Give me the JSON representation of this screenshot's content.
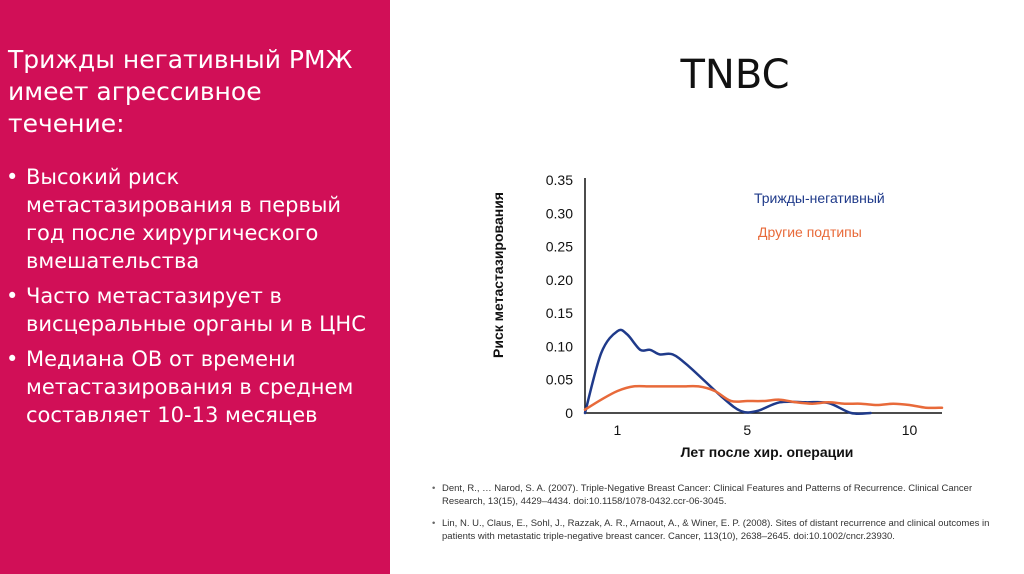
{
  "left": {
    "title": "Трижды негативный РМЖ имеет агрессивное течение:",
    "bullets": [
      "Высокий риск метастазирования в первый год после хирургического вмешательства",
      "Часто метастазирует в висцеральные органы и в ЦНС",
      "Медиана ОВ от времени метастазирования в среднем составляет 10-13 месяцев"
    ],
    "bullet_char": "•",
    "background": "#d10f57"
  },
  "right": {
    "title": "TNBC"
  },
  "chart_data": {
    "type": "line",
    "xlabel": "Лет после хир. операции",
    "ylabel": "Риск метастазирования",
    "y_ticks": [
      "0",
      "0.05",
      "0.10",
      "0.15",
      "0.20",
      "0.25",
      "0.30",
      "0.35"
    ],
    "x_ticks": [
      "1",
      "5",
      "10"
    ],
    "xlim": [
      0,
      11
    ],
    "ylim": [
      0,
      0.35
    ],
    "legend_position": "top-right",
    "series": [
      {
        "name": "Трижды-негативный",
        "color": "#1f3a8a",
        "x": [
          0,
          0.5,
          1.0,
          1.3,
          1.7,
          2.0,
          2.3,
          2.7,
          3.2,
          4.2,
          4.8,
          5.3,
          6.0,
          6.8,
          7.5,
          8.2,
          8.8
        ],
        "y": [
          0.0,
          0.09,
          0.123,
          0.118,
          0.095,
          0.095,
          0.088,
          0.088,
          0.07,
          0.025,
          0.003,
          0.003,
          0.016,
          0.016,
          0.015,
          0.0,
          0.0
        ]
      },
      {
        "name": "Другие подтипы",
        "color": "#e86a3a",
        "x": [
          0,
          0.5,
          1.0,
          1.5,
          2.0,
          2.5,
          3.0,
          3.5,
          4.0,
          4.5,
          5.0,
          5.5,
          6.0,
          6.5,
          7.0,
          7.5,
          8.0,
          8.5,
          9.0,
          9.5,
          10.0,
          10.5,
          11.0
        ],
        "y": [
          0.005,
          0.02,
          0.033,
          0.04,
          0.04,
          0.04,
          0.04,
          0.04,
          0.033,
          0.018,
          0.018,
          0.018,
          0.02,
          0.016,
          0.014,
          0.016,
          0.014,
          0.014,
          0.012,
          0.014,
          0.012,
          0.008,
          0.008
        ]
      }
    ]
  },
  "references": [
    "Dent, R., … Narod, S. A. (2007). Triple-Negative Breast Cancer: Clinical Features and Patterns of Recurrence. Clinical Cancer Research, 13(15), 4429–4434. doi:10.1158/1078-0432.ccr-06-3045.",
    "Lin, N. U., Claus, E., Sohl, J., Razzak, A. R., Arnaout, A., & Winer, E. P. (2008). Sites of distant recurrence and clinical outcomes in patients with metastatic triple-negative breast cancer. Cancer, 113(10), 2638–2645. doi:10.1002/cncr.23930."
  ]
}
